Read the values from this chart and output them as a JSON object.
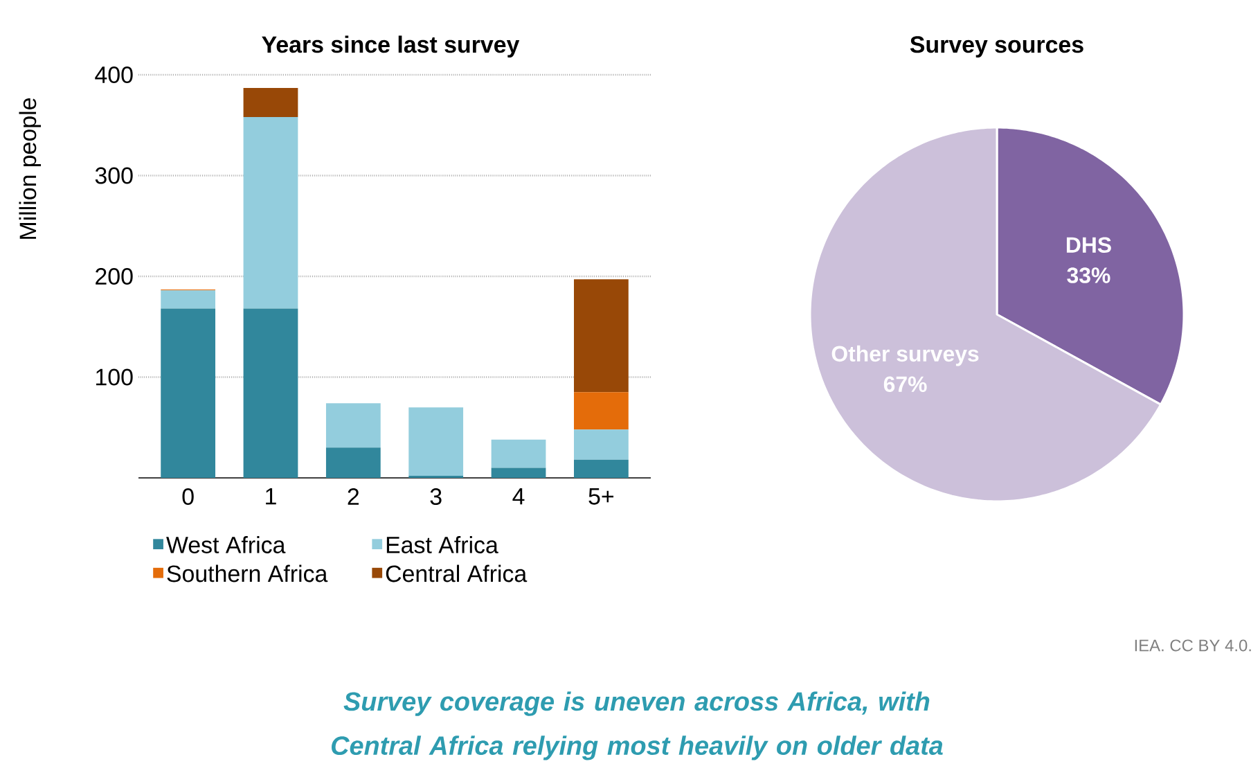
{
  "chart_data": [
    {
      "type": "bar",
      "title": "Years since last survey",
      "ylabel": "Million people",
      "categories": [
        "0",
        "1",
        "2",
        "3",
        "4",
        "5+"
      ],
      "series": [
        {
          "name": "West Africa",
          "color": "#31879c",
          "values": [
            168,
            168,
            30,
            2,
            10,
            18
          ]
        },
        {
          "name": "East Africa",
          "color": "#93cddd",
          "values": [
            18,
            190,
            44,
            68,
            28,
            30
          ]
        },
        {
          "name": "Southern Africa",
          "color": "#e46c0a",
          "values": [
            1,
            0,
            0,
            0,
            0,
            37
          ]
        },
        {
          "name": "Central Africa",
          "color": "#984807",
          "values": [
            0,
            29,
            0,
            0,
            0,
            112
          ]
        }
      ],
      "stacked": true,
      "ylim": [
        0,
        400
      ],
      "yticks": [
        100,
        200,
        300,
        400
      ],
      "grid": "y",
      "legend": "bottom"
    },
    {
      "type": "pie",
      "title": "Survey sources",
      "categories": [
        "DHS",
        "Other surveys"
      ],
      "values": [
        33,
        67
      ],
      "colors": [
        "#8064a2",
        "#ccc0da"
      ],
      "value_labels": [
        "33%",
        "67%"
      ],
      "annotations": [
        "IEA. CC BY 4.0.",
        "Survey coverage is uneven across Africa, with Central Africa relying most heavily on older data"
      ]
    }
  ]
}
